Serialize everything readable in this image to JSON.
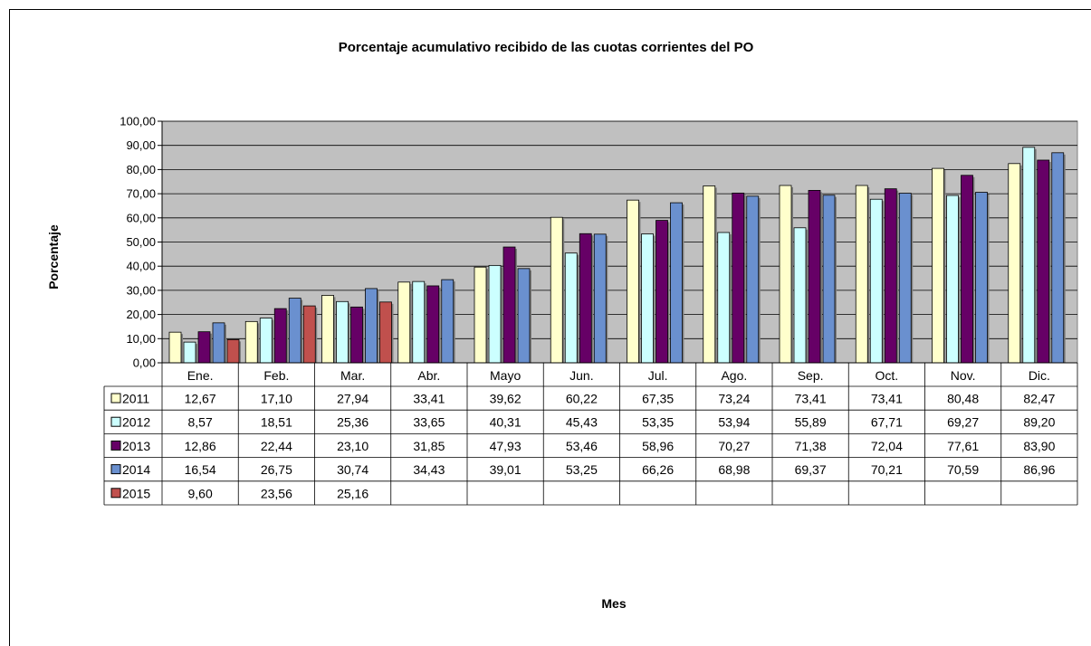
{
  "chart_data": {
    "type": "bar",
    "title": "Porcentaje acumulativo recibido de las cuotas corrientes del PO",
    "xlabel": "Mes",
    "ylabel": "Porcentaje",
    "ylim": [
      0,
      100
    ],
    "y_ticks": [
      "0,00",
      "10,00",
      "20,00",
      "30,00",
      "40,00",
      "50,00",
      "60,00",
      "70,00",
      "80,00",
      "90,00",
      "100,00"
    ],
    "grid": true,
    "legend": "data-table-left",
    "categories": [
      "Ene.",
      "Feb.",
      "Mar.",
      "Abr.",
      "Mayo",
      "Jun.",
      "Jul.",
      "Ago.",
      "Sep.",
      "Oct.",
      "Nov.",
      "Dic."
    ],
    "series": [
      {
        "name": "2011",
        "color": "#FFFFCC",
        "values": [
          12.67,
          17.1,
          27.94,
          33.41,
          39.62,
          60.22,
          67.35,
          73.24,
          73.41,
          73.41,
          80.48,
          82.47
        ],
        "labels": [
          "12,67",
          "17,10",
          "27,94",
          "33,41",
          "39,62",
          "60,22",
          "67,35",
          "73,24",
          "73,41",
          "73,41",
          "80,48",
          "82,47"
        ]
      },
      {
        "name": "2012",
        "color": "#CCFFFF",
        "values": [
          8.57,
          18.51,
          25.36,
          33.65,
          40.31,
          45.43,
          53.35,
          53.94,
          55.89,
          67.71,
          69.27,
          89.2
        ],
        "labels": [
          "8,57",
          "18,51",
          "25,36",
          "33,65",
          "40,31",
          "45,43",
          "53,35",
          "53,94",
          "55,89",
          "67,71",
          "69,27",
          "89,20"
        ]
      },
      {
        "name": "2013",
        "color": "#660066",
        "values": [
          12.86,
          22.44,
          23.1,
          31.85,
          47.93,
          53.46,
          58.96,
          70.27,
          71.38,
          72.04,
          77.61,
          83.9
        ],
        "labels": [
          "12,86",
          "22,44",
          "23,10",
          "31,85",
          "47,93",
          "53,46",
          "58,96",
          "70,27",
          "71,38",
          "72,04",
          "77,61",
          "83,90"
        ]
      },
      {
        "name": "2014",
        "color": "#6A90CF",
        "values": [
          16.54,
          26.75,
          30.74,
          34.43,
          39.01,
          53.25,
          66.26,
          68.98,
          69.37,
          70.21,
          70.59,
          86.96
        ],
        "labels": [
          "16,54",
          "26,75",
          "30,74",
          "34,43",
          "39,01",
          "53,25",
          "66,26",
          "68,98",
          "69,37",
          "70,21",
          "70,59",
          "86,96"
        ]
      },
      {
        "name": "2015",
        "color": "#C0504D",
        "values": [
          9.6,
          23.56,
          25.16,
          null,
          null,
          null,
          null,
          null,
          null,
          null,
          null,
          null
        ],
        "labels": [
          "9,60",
          "23,56",
          "25,16",
          "",
          "",
          "",
          "",
          "",
          "",
          "",
          "",
          ""
        ]
      }
    ]
  }
}
